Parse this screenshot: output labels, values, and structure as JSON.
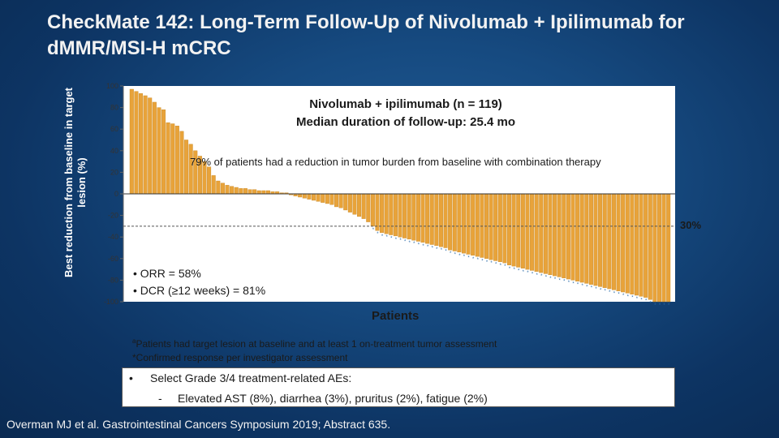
{
  "title": "CheckMate 142: Long-Term Follow-Up of Nivolumab + Ipilimumab for dMMR/MSI-H mCRC",
  "colors": {
    "bar": "#e8a33a",
    "bar_edge": "#c98a28",
    "plot_bg": "#ffffff",
    "reference_line": "#555555",
    "marker": "#2a6aa8"
  },
  "annotations": {
    "arm_line1": "Nivolumab + ipilimumab (n = 119)",
    "arm_line2": "Median duration of follow-up: 25.4 mo",
    "reduction_note": "79% of patients had a reduction in tumor burden from baseline with combination therapy",
    "ref_line_label": "30%",
    "stats": [
      "ORR = 58%",
      "DCR (≥12 weeks) = 81%"
    ],
    "footnote_a_sup": "a",
    "footnote_a": "Patients had target lesion at baseline and at least 1 on-treatment tumor assessment",
    "footnote_star": "*Confirmed response per investigator assessment",
    "aes_bullet": "•",
    "aes_heading": "Select Grade 3/4 treatment-related AEs:",
    "aes_dash": "-",
    "aes_items": "Elevated AST (8%), diarrhea (3%), pruritus (2%), fatigue (2%)"
  },
  "citation": "Overman MJ et al. Gastrointestinal Cancers Symposium 2019; Abstract 635.",
  "chart_data": {
    "type": "bar",
    "title": "",
    "xlabel": "Patients",
    "ylabel": "Best reduction from baseline in target lesion (%)",
    "ylim": [
      -100,
      100
    ],
    "yticks": [
      -100,
      -80,
      -60,
      -40,
      -20,
      0,
      20,
      40,
      60,
      80,
      100
    ],
    "reference_line": -30,
    "n_patients": 119,
    "confirmed_response_marker": "*",
    "values": [
      97,
      95,
      93,
      91,
      89,
      85,
      80,
      78,
      66,
      65,
      63,
      58,
      50,
      46,
      40,
      35,
      30,
      25,
      17,
      12,
      10,
      8,
      7,
      6,
      5,
      5,
      4,
      4,
      3,
      3,
      3,
      2,
      2,
      1,
      1,
      -1,
      -2,
      -3,
      -4,
      -5,
      -6,
      -7,
      -8,
      -9,
      -10,
      -12,
      -13,
      -15,
      -17,
      -19,
      -21,
      -23,
      -26,
      -30,
      -34,
      -36,
      -37,
      -38,
      -39,
      -40,
      -41,
      -42,
      -43,
      -44,
      -45,
      -46,
      -47,
      -48,
      -49,
      -50,
      -52,
      -53,
      -54,
      -55,
      -56,
      -57,
      -58,
      -59,
      -60,
      -61,
      -62,
      -63,
      -64,
      -66,
      -67,
      -68,
      -69,
      -70,
      -71,
      -72,
      -73,
      -74,
      -75,
      -76,
      -77,
      -78,
      -79,
      -80,
      -81,
      -82,
      -83,
      -84,
      -85,
      -86,
      -87,
      -88,
      -89,
      -90,
      -91,
      -92,
      -93,
      -94,
      -95,
      -96,
      -98,
      -100,
      -100,
      -100,
      -100
    ]
  }
}
